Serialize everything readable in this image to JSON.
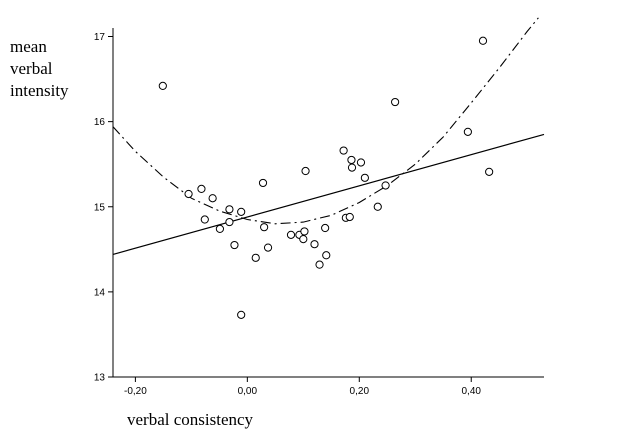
{
  "chart_data": {
    "type": "scatter",
    "xlabel": "verbal consistency",
    "ylabel_lines": [
      "mean",
      "verbal",
      "intensity"
    ],
    "xlim": [
      -0.24,
      0.53
    ],
    "ylim": [
      13,
      17.1
    ],
    "x_ticks": [
      -0.2,
      0.0,
      0.2,
      0.4
    ],
    "x_tick_labels": [
      "-0,20",
      "0,00",
      "0,20",
      "0,40"
    ],
    "y_ticks": [
      13,
      14,
      15,
      16,
      17
    ],
    "y_tick_labels": [
      "13",
      "14",
      "15",
      "16",
      "17"
    ],
    "grid": false,
    "points": [
      {
        "x": -0.151,
        "y": 16.42
      },
      {
        "x": -0.105,
        "y": 15.15
      },
      {
        "x": -0.082,
        "y": 15.21
      },
      {
        "x": -0.076,
        "y": 14.85
      },
      {
        "x": -0.062,
        "y": 15.1
      },
      {
        "x": -0.049,
        "y": 14.74
      },
      {
        "x": -0.032,
        "y": 14.97
      },
      {
        "x": -0.032,
        "y": 14.82
      },
      {
        "x": -0.023,
        "y": 14.55
      },
      {
        "x": -0.011,
        "y": 14.94
      },
      {
        "x": -0.011,
        "y": 13.73
      },
      {
        "x": 0.015,
        "y": 14.4
      },
      {
        "x": 0.028,
        "y": 15.28
      },
      {
        "x": 0.03,
        "y": 14.76
      },
      {
        "x": 0.037,
        "y": 14.52
      },
      {
        "x": 0.078,
        "y": 14.67
      },
      {
        "x": 0.093,
        "y": 14.67
      },
      {
        "x": 0.1,
        "y": 14.62
      },
      {
        "x": 0.102,
        "y": 14.71
      },
      {
        "x": 0.104,
        "y": 15.42
      },
      {
        "x": 0.12,
        "y": 14.56
      },
      {
        "x": 0.129,
        "y": 14.32
      },
      {
        "x": 0.139,
        "y": 14.75
      },
      {
        "x": 0.141,
        "y": 14.43
      },
      {
        "x": 0.172,
        "y": 15.66
      },
      {
        "x": 0.176,
        "y": 14.87
      },
      {
        "x": 0.183,
        "y": 14.88
      },
      {
        "x": 0.186,
        "y": 15.55
      },
      {
        "x": 0.187,
        "y": 15.46
      },
      {
        "x": 0.203,
        "y": 15.52
      },
      {
        "x": 0.21,
        "y": 15.34
      },
      {
        "x": 0.233,
        "y": 15.0
      },
      {
        "x": 0.247,
        "y": 15.25
      },
      {
        "x": 0.264,
        "y": 16.23
      },
      {
        "x": 0.394,
        "y": 15.88
      },
      {
        "x": 0.421,
        "y": 16.95
      },
      {
        "x": 0.432,
        "y": 15.41
      }
    ],
    "linear_fit": {
      "x": [
        -0.24,
        0.53
      ],
      "y": [
        14.44,
        15.85
      ]
    },
    "quadratic_fit": {
      "style": "dash-dot",
      "x": [
        -0.24,
        -0.2,
        -0.15,
        -0.1,
        -0.05,
        0.0,
        0.05,
        0.1,
        0.15,
        0.2,
        0.25,
        0.3,
        0.35,
        0.4,
        0.45,
        0.5,
        0.52
      ],
      "y": [
        15.94,
        15.65,
        15.35,
        15.1,
        14.95,
        14.85,
        14.8,
        14.82,
        14.9,
        15.05,
        15.25,
        15.5,
        15.82,
        16.22,
        16.63,
        17.06,
        17.22
      ]
    }
  }
}
